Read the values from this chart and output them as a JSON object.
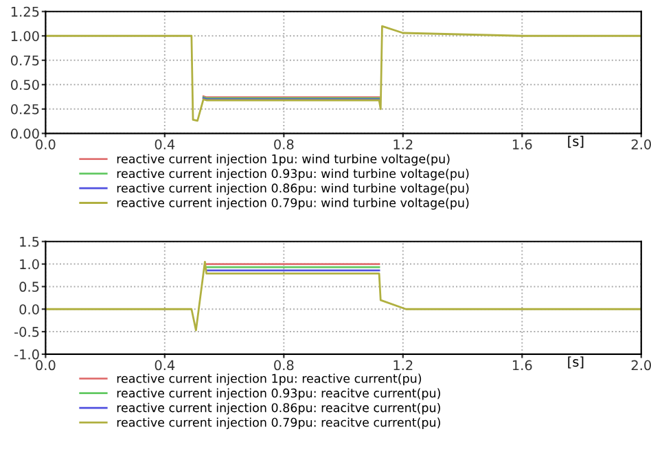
{
  "chart_data": [
    {
      "type": "line",
      "xlabel": "[s]",
      "xlim": [
        0,
        2
      ],
      "ylim": [
        0,
        1.25
      ],
      "xticks": [
        {
          "value": 0,
          "label": "0.0"
        },
        {
          "value": 0.4,
          "label": "0.4"
        },
        {
          "value": 0.8,
          "label": "0.8"
        },
        {
          "value": 1.2,
          "label": "1.2"
        },
        {
          "value": 1.6,
          "label": "1.6"
        },
        {
          "value": 2,
          "label": "2.0"
        }
      ],
      "yticks": [
        {
          "value": 0,
          "label": "0.00"
        },
        {
          "value": 0.25,
          "label": "0.25"
        },
        {
          "value": 0.5,
          "label": "0.50"
        },
        {
          "value": 0.75,
          "label": "0.75"
        },
        {
          "value": 1,
          "label": "1.00"
        },
        {
          "value": 1.25,
          "label": "1.25"
        }
      ],
      "grid": true,
      "legend": "bottom",
      "line_style": "solid",
      "series": [
        {
          "name": "reactive current injection 1pu: wind turbine voltage(pu)",
          "color": "#e07070",
          "x": [
            0.53,
            0.54,
            1.12
          ],
          "values": [
            0.38,
            0.37,
            0.37
          ]
        },
        {
          "name": "reactive current injection 0.93pu: wind turbine voltage(pu)",
          "color": "#60c860",
          "x": [
            0.53,
            0.54,
            1.12
          ],
          "values": [
            0.37,
            0.36,
            0.36
          ]
        },
        {
          "name": "reactive current injection 0.86pu: wind turbine voltage(pu)",
          "color": "#5050e0",
          "x": [
            0.53,
            0.54,
            1.12
          ],
          "values": [
            0.36,
            0.35,
            0.35
          ]
        },
        {
          "name": "reactive current injection 0.79pu: wind turbine voltage(pu)",
          "color": "#b0b040",
          "x": [
            0,
            0.49,
            0.495,
            0.51,
            0.53,
            0.54,
            1.12,
            1.125,
            1.13,
            1.2,
            1.6,
            2.0
          ],
          "values": [
            1.0,
            1.0,
            0.14,
            0.13,
            0.35,
            0.34,
            0.34,
            0.25,
            1.1,
            1.03,
            1.0,
            1.0
          ]
        }
      ]
    },
    {
      "type": "line",
      "xlabel": "[s]",
      "xlim": [
        0,
        2
      ],
      "ylim": [
        -1,
        1.5
      ],
      "xticks": [
        {
          "value": 0,
          "label": "0.0"
        },
        {
          "value": 0.4,
          "label": "0.4"
        },
        {
          "value": 0.8,
          "label": "0.8"
        },
        {
          "value": 1.2,
          "label": "1.2"
        },
        {
          "value": 1.6,
          "label": "1.6"
        },
        {
          "value": 2,
          "label": "2.0"
        }
      ],
      "yticks": [
        {
          "value": -1,
          "label": "-1.0"
        },
        {
          "value": -0.5,
          "label": "-0.5"
        },
        {
          "value": 0,
          "label": "0.0"
        },
        {
          "value": 0.5,
          "label": "0.5"
        },
        {
          "value": 1,
          "label": "1.0"
        },
        {
          "value": 1.5,
          "label": "1.5"
        }
      ],
      "grid": true,
      "legend": "bottom",
      "line_style": "solid",
      "series": [
        {
          "name": "reactive current injection 1pu: reactive current(pu)",
          "color": "#e07070",
          "x": [
            0.54,
            1.12
          ],
          "values": [
            1.0,
            1.0
          ]
        },
        {
          "name": "reactive current injection 0.93pu: reacitve current(pu)",
          "color": "#60c860",
          "x": [
            0.54,
            1.12
          ],
          "values": [
            0.93,
            0.93
          ]
        },
        {
          "name": "reactive current injection 0.86pu: reacitve current(pu)",
          "color": "#5050e0",
          "x": [
            0.54,
            1.12
          ],
          "values": [
            0.86,
            0.86
          ]
        },
        {
          "name": "reactive current injection 0.79pu: reacitve current(pu)",
          "color": "#b0b040",
          "x": [
            0,
            0.49,
            0.505,
            0.535,
            0.54,
            1.12,
            1.125,
            1.21,
            2.0
          ],
          "values": [
            0,
            0,
            -0.47,
            1.05,
            0.79,
            0.79,
            0.2,
            0,
            0
          ]
        }
      ]
    }
  ]
}
